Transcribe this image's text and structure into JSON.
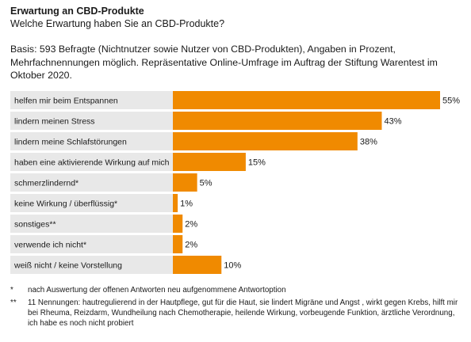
{
  "header": {
    "title": "Erwartung an CBD-Produkte",
    "subtitle": "Welche Erwartung haben Sie an CBD-Produkte?",
    "basis": "Basis: 593 Befragte (Nichtnutzer sowie Nutzer von CBD-Produkten), Angaben in Prozent, Mehrfachnennungen möglich. Repräsentative Online-Umfrage im Auftrag der Stiftung Warentest im Oktober 2020."
  },
  "chart_data": {
    "type": "bar",
    "orientation": "horizontal",
    "title": "Erwartung an CBD-Produkte",
    "subtitle": "Welche Erwartung haben Sie an CBD-Produkte?",
    "xlim": [
      0,
      55
    ],
    "unit": "%",
    "categories": [
      "helfen mir beim Entspannen",
      "lindern meinen Stress",
      "lindern meine Schlafstörungen",
      "haben eine aktivierende Wirkung auf mich",
      "schmerzlindernd*",
      "keine Wirkung / überflüssig*",
      "sonstiges**",
      "verwende ich nicht*",
      "weiß nicht / keine Vorstellung"
    ],
    "values": [
      55,
      43,
      38,
      15,
      5,
      1,
      2,
      2,
      10
    ],
    "value_labels": [
      "55%",
      "43%",
      "38%",
      "15%",
      "5%",
      "1%",
      "2%",
      "2%",
      "10%"
    ],
    "colors": {
      "bar": "#f08a00",
      "label_background": "#e8e8e8"
    }
  },
  "footnotes": [
    {
      "mark": "*",
      "text": "nach Auswertung der offenen Antworten neu aufgenommene Antwortoption"
    },
    {
      "mark": "**",
      "text": "11 Nennungen: hautregulierend in der Hautpflege, gut für die Haut, sie lindert Migräne und Angst , wirkt gegen Krebs, hilft mir bei Rheuma, Reizdarm, Wundheilung nach Chemotherapie, heilende Wirkung, vorbeugende Funktion, ärztliche Verordnung, ich habe es noch nicht probiert"
    }
  ]
}
